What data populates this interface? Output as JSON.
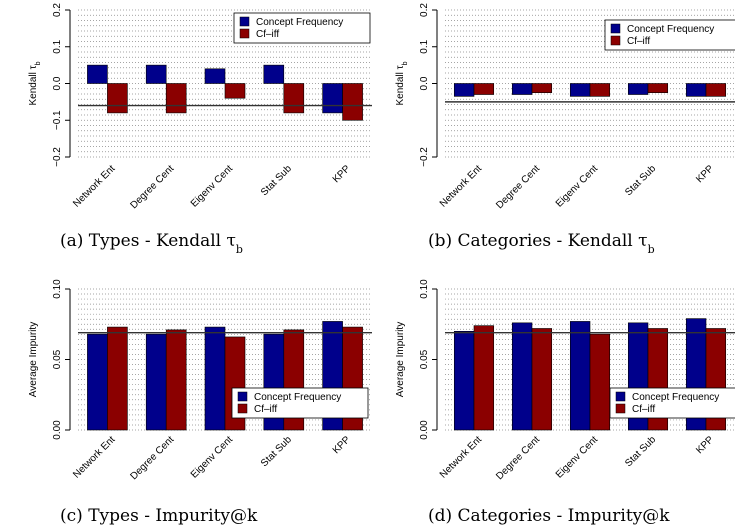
{
  "colors": {
    "concept_frequency": "#00008b",
    "cf_iff": "#8b0000",
    "grid": "#888888",
    "reference_line": "#333333"
  },
  "legend": [
    "Concept Frequency",
    "Cf–iff"
  ],
  "categories": [
    "Network Ent",
    "Degree Cent",
    "Eigenv Cent",
    "Stat Sub",
    "KPP"
  ],
  "chart_data": [
    {
      "type": "bar",
      "caption": "(a) Types - Kendall τb",
      "ylabel": "Kendall τb",
      "ylim": [
        -0.2,
        0.2
      ],
      "yticks": [
        "−0.2",
        "−0.1",
        "0.0",
        "0.1",
        "0.2"
      ],
      "ytick_values": [
        -0.2,
        -0.1,
        0.0,
        0.1,
        0.2
      ],
      "baseline": 0,
      "reference_line": -0.06,
      "grid": "horizontal dotted",
      "legend_position": "top-right",
      "categories": [
        "Network Ent",
        "Degree Cent",
        "Eigenv Cent",
        "Stat Sub",
        "KPP"
      ],
      "series": [
        {
          "name": "Concept Frequency",
          "values": [
            0.05,
            0.05,
            0.04,
            0.05,
            -0.08
          ]
        },
        {
          "name": "Cf–iff",
          "values": [
            -0.08,
            -0.08,
            -0.04,
            -0.08,
            -0.1
          ]
        }
      ]
    },
    {
      "type": "bar",
      "caption": "(b) Categories - Kendall τb",
      "ylabel": "Kendall τb",
      "ylim": [
        -0.2,
        0.2
      ],
      "yticks": [
        "−0.2",
        "0.0",
        "0.1",
        "0.2"
      ],
      "ytick_values": [
        -0.2,
        0.0,
        0.1,
        0.2
      ],
      "baseline": 0,
      "reference_line": -0.05,
      "grid": "horizontal dotted",
      "legend_position": "top-right",
      "categories": [
        "Network Ent",
        "Degree Cent",
        "Eigenv Cent",
        "Stat Sub",
        "KPP"
      ],
      "series": [
        {
          "name": "Concept Frequency",
          "values": [
            -0.035,
            -0.03,
            -0.035,
            -0.03,
            -0.035
          ]
        },
        {
          "name": "Cf–iff",
          "values": [
            -0.03,
            -0.025,
            -0.035,
            -0.025,
            -0.035
          ]
        }
      ]
    },
    {
      "type": "bar",
      "caption": "(c) Types - Impurity@k",
      "ylabel": "Average Impurity",
      "ylim": [
        0,
        0.1
      ],
      "yticks": [
        "0.00",
        "0.05",
        "0.10"
      ],
      "ytick_values": [
        0.0,
        0.05,
        0.1
      ],
      "baseline": 0,
      "reference_line": 0.069,
      "grid": "horizontal dotted",
      "legend_position": "bottom-right",
      "categories": [
        "Network Ent",
        "Degree Cent",
        "Eigenv Cent",
        "Stat Sub",
        "KPP"
      ],
      "series": [
        {
          "name": "Concept Frequency",
          "values": [
            0.068,
            0.068,
            0.073,
            0.068,
            0.077
          ]
        },
        {
          "name": "Cf–iff",
          "values": [
            0.073,
            0.071,
            0.066,
            0.071,
            0.073
          ]
        }
      ]
    },
    {
      "type": "bar",
      "caption": "(d) Categories - Impurity@k",
      "ylabel": "Average Impurity",
      "ylim": [
        0,
        0.1
      ],
      "yticks": [
        "0.00",
        "0.05",
        "0.10"
      ],
      "ytick_values": [
        0.0,
        0.05,
        0.1
      ],
      "baseline": 0,
      "reference_line": 0.069,
      "grid": "horizontal dotted",
      "legend_position": "bottom-right",
      "categories": [
        "Network Ent",
        "Degree Cent",
        "Eigenv Cent",
        "Stat Sub",
        "KPP"
      ],
      "series": [
        {
          "name": "Concept Frequency",
          "values": [
            0.07,
            0.076,
            0.077,
            0.076,
            0.079
          ]
        },
        {
          "name": "Cf–iff",
          "values": [
            0.074,
            0.072,
            0.068,
            0.072,
            0.072
          ]
        }
      ]
    }
  ]
}
